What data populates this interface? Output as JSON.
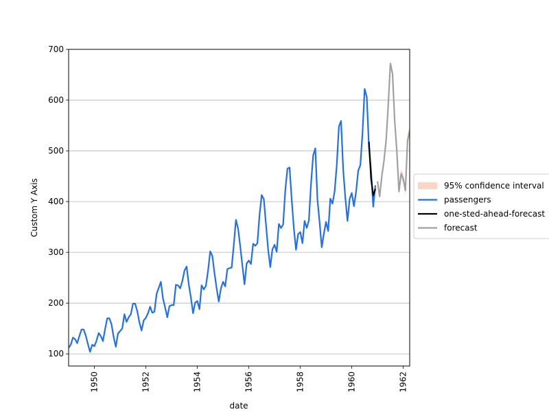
{
  "chart_data": {
    "type": "line",
    "title": "",
    "xlabel": "date",
    "ylabel": "Custom Y Axis",
    "xlim": [
      1949.0,
      1962.25
    ],
    "ylim": [
      76,
      700
    ],
    "x_ticks": [
      1950,
      1952,
      1954,
      1956,
      1958,
      1960,
      1962
    ],
    "y_ticks": [
      100,
      200,
      300,
      400,
      500,
      600,
      700
    ],
    "grid": "horizontal",
    "legend_position": "outside right",
    "colors": {
      "passengers": "#1f6ff0",
      "one_step": "#000000",
      "forecast": "#a0a0a0",
      "confidence": "#fdd5c5"
    },
    "legend": [
      {
        "label": "95% confidence interval",
        "kind": "patch",
        "color": "#fdd5c5"
      },
      {
        "label": "passengers",
        "kind": "line",
        "color": "#1f6ff0"
      },
      {
        "label": "one-sted-ahead-forecast",
        "kind": "line",
        "color": "#000000"
      },
      {
        "label": "forecast",
        "kind": "line",
        "color": "#a0a0a0"
      }
    ],
    "series": [
      {
        "name": "passengers",
        "x_start": 1949.0,
        "x_step": 0.0833333,
        "values": [
          112,
          118,
          132,
          129,
          121,
          135,
          148,
          148,
          136,
          119,
          104,
          118,
          115,
          126,
          141,
          135,
          125,
          149,
          170,
          170,
          158,
          133,
          114,
          140,
          145,
          150,
          178,
          163,
          172,
          178,
          199,
          199,
          184,
          162,
          146,
          166,
          171,
          180,
          193,
          181,
          183,
          218,
          230,
          242,
          209,
          191,
          172,
          194,
          196,
          196,
          236,
          235,
          229,
          243,
          264,
          272,
          237,
          211,
          180,
          201,
          204,
          188,
          235,
          227,
          234,
          264,
          302,
          293,
          259,
          229,
          203,
          229,
          242,
          233,
          267,
          269,
          270,
          315,
          364,
          347,
          312,
          274,
          237,
          278,
          284,
          277,
          317,
          313,
          318,
          374,
          413,
          405,
          355,
          306,
          271,
          306,
          315,
          301,
          356,
          348,
          355,
          422,
          465,
          467,
          404,
          347,
          305,
          336,
          340,
          318,
          362,
          348,
          363,
          435,
          491,
          505,
          404,
          359,
          310,
          337,
          360,
          342,
          406,
          396,
          420,
          472,
          548,
          559,
          463,
          407,
          362,
          405,
          417,
          391,
          419,
          461,
          472,
          535,
          622,
          606,
          508,
          461,
          390,
          432
        ]
      },
      {
        "name": "one-sted-ahead-forecast",
        "x": [
          1960.667,
          1960.75,
          1960.833,
          1960.917
        ],
        "values": [
          518,
          445,
          412,
          425
        ]
      },
      {
        "name": "forecast",
        "x_start": 1961.0,
        "x_step": 0.0833333,
        "values": [
          440,
          410,
          450,
          480,
          520,
          590,
          672,
          652,
          560,
          500,
          420,
          455,
          445,
          422,
          520,
          540
        ]
      }
    ],
    "confidence_interval": {
      "x_start": 1961.0,
      "x_step": 0.0833333,
      "lower": [
        437,
        407,
        447,
        476,
        515,
        584,
        665,
        644,
        552,
        492,
        412,
        446,
        436,
        413,
        510,
        529
      ],
      "upper": [
        443,
        413,
        453,
        484,
        525,
        596,
        679,
        660,
        568,
        508,
        428,
        464,
        454,
        431,
        530,
        551
      ]
    }
  }
}
